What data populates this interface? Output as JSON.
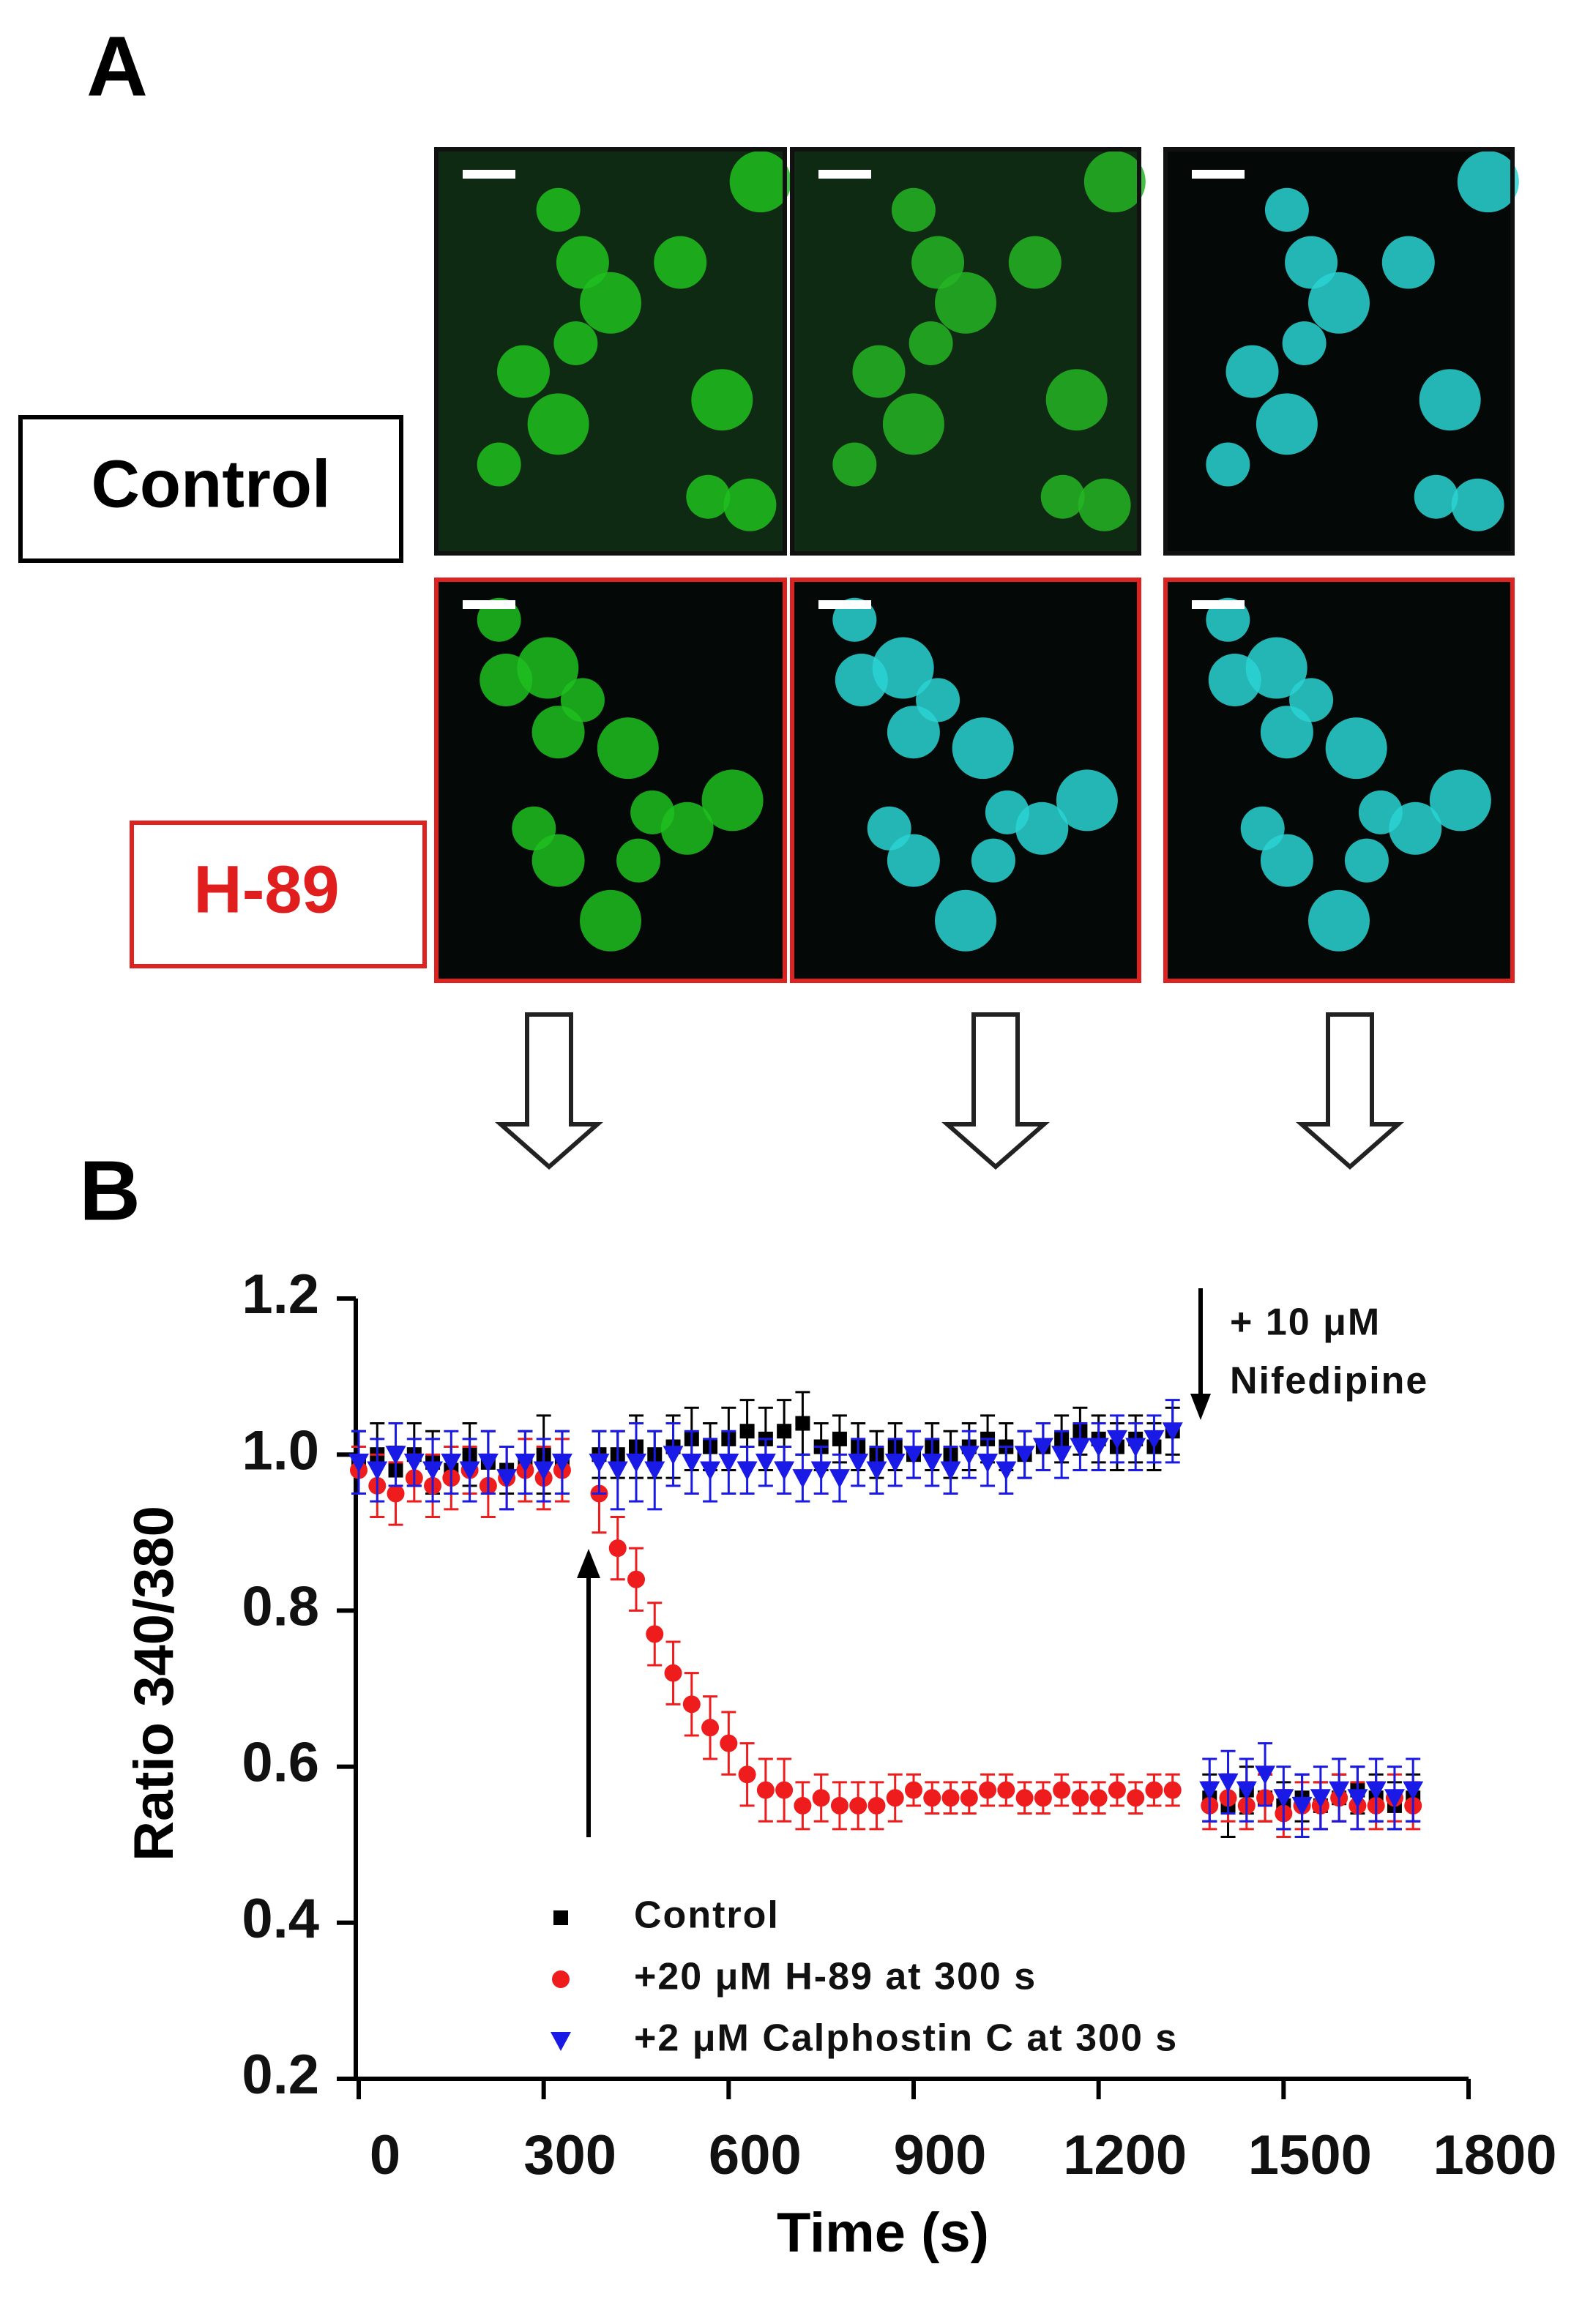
{
  "panel_labels": [
    "A",
    "B"
  ],
  "row_labels": [
    "Control",
    "H-89"
  ],
  "chart_data": {
    "type": "scatter",
    "xlabel": "Time (s)",
    "ylabel": "Ratio 340/380",
    "annotations": [
      "+ 10 μM",
      "Nifedipine"
    ],
    "xlim": [
      0,
      1800
    ],
    "xticks": [
      0,
      300,
      600,
      900,
      1200,
      1500,
      1800
    ],
    "ylim": [
      0.2,
      1.2
    ],
    "yticks": [
      0.2,
      0.4,
      0.6,
      0.8,
      {
        "value": 1,
        "label": "1.0"
      },
      1.2
    ],
    "x": [
      0,
      30,
      60,
      90,
      120,
      150,
      180,
      210,
      240,
      270,
      300,
      330,
      390,
      420,
      450,
      480,
      510,
      540,
      570,
      600,
      630,
      660,
      690,
      720,
      750,
      780,
      810,
      840,
      870,
      900,
      930,
      960,
      990,
      1020,
      1050,
      1080,
      1110,
      1140,
      1170,
      1200,
      1230,
      1260,
      1290,
      1320,
      1380,
      1410,
      1440,
      1470,
      1500,
      1530,
      1560,
      1590,
      1620,
      1650,
      1680,
      1710
    ],
    "series": [
      {
        "name": "Control",
        "color": "#000000",
        "marker": "square",
        "values": [
          0.99,
          1.0,
          0.98,
          1.0,
          0.99,
          0.98,
          1.0,
          0.99,
          0.98,
          0.99,
          1.0,
          0.99,
          1.0,
          1.0,
          1.01,
          1.0,
          1.01,
          1.02,
          1.01,
          1.02,
          1.03,
          1.02,
          1.03,
          1.04,
          1.01,
          1.02,
          1.01,
          1.0,
          1.01,
          1.0,
          1.01,
          1.0,
          1.01,
          1.02,
          1.01,
          1.0,
          1.01,
          1.02,
          1.03,
          1.02,
          1.01,
          1.02,
          1.01,
          1.03,
          0.56,
          0.55,
          0.57,
          0.56,
          0.55,
          0.56,
          0.55,
          0.56,
          0.57,
          0.56,
          0.55,
          0.56
        ],
        "errors": [
          0.04,
          0.04,
          0.03,
          0.04,
          0.04,
          0.03,
          0.04,
          0.04,
          0.03,
          0.04,
          0.05,
          0.04,
          0.03,
          0.03,
          0.04,
          0.03,
          0.04,
          0.04,
          0.03,
          0.04,
          0.04,
          0.04,
          0.04,
          0.04,
          0.03,
          0.03,
          0.03,
          0.03,
          0.03,
          0.03,
          0.03,
          0.03,
          0.03,
          0.03,
          0.03,
          0.03,
          0.03,
          0.03,
          0.03,
          0.03,
          0.03,
          0.03,
          0.03,
          0.03,
          0.03,
          0.04,
          0.03,
          0.03,
          0.03,
          0.03,
          0.03,
          0.03,
          0.03,
          0.03,
          0.03,
          0.03
        ]
      },
      {
        "name": "+20 μM H-89 at 300 s",
        "color": "#ee1c1c",
        "marker": "circle",
        "values": [
          0.98,
          0.96,
          0.95,
          0.97,
          0.96,
          0.97,
          0.98,
          0.96,
          0.97,
          0.98,
          0.97,
          0.98,
          0.95,
          0.88,
          0.84,
          0.77,
          0.72,
          0.68,
          0.65,
          0.63,
          0.59,
          0.57,
          0.57,
          0.55,
          0.56,
          0.55,
          0.55,
          0.55,
          0.56,
          0.57,
          0.56,
          0.56,
          0.56,
          0.57,
          0.57,
          0.56,
          0.56,
          0.57,
          0.56,
          0.56,
          0.57,
          0.56,
          0.57,
          0.57,
          0.55,
          0.56,
          0.55,
          0.56,
          0.54,
          0.55,
          0.55,
          0.56,
          0.55,
          0.55,
          0.56,
          0.55
        ],
        "errors": [
          0.03,
          0.04,
          0.04,
          0.03,
          0.04,
          0.04,
          0.03,
          0.04,
          0.04,
          0.04,
          0.04,
          0.04,
          0.05,
          0.04,
          0.04,
          0.04,
          0.04,
          0.04,
          0.04,
          0.04,
          0.04,
          0.04,
          0.04,
          0.03,
          0.03,
          0.03,
          0.03,
          0.03,
          0.03,
          0.02,
          0.02,
          0.02,
          0.02,
          0.02,
          0.02,
          0.02,
          0.02,
          0.02,
          0.02,
          0.02,
          0.02,
          0.02,
          0.02,
          0.02,
          0.03,
          0.03,
          0.03,
          0.03,
          0.03,
          0.03,
          0.03,
          0.03,
          0.03,
          0.03,
          0.03,
          0.03
        ]
      },
      {
        "name": "+2 μM Calphostin C at 300 s",
        "color": "#1a1ae6",
        "marker": "triangle-down",
        "values": [
          0.99,
          0.98,
          1.0,
          0.99,
          0.98,
          0.99,
          0.98,
          0.99,
          0.97,
          0.99,
          0.98,
          0.99,
          0.99,
          0.98,
          0.99,
          0.98,
          1.0,
          0.99,
          0.98,
          0.99,
          0.98,
          0.99,
          0.98,
          0.97,
          0.98,
          0.97,
          0.99,
          0.98,
          0.99,
          1.0,
          0.99,
          0.98,
          1.0,
          0.99,
          0.98,
          1.0,
          1.01,
          1.0,
          1.01,
          1.01,
          1.02,
          1.01,
          1.02,
          1.03,
          0.57,
          0.58,
          0.57,
          0.59,
          0.56,
          0.55,
          0.56,
          0.57,
          0.56,
          0.57,
          0.56,
          0.57
        ],
        "errors": [
          0.04,
          0.04,
          0.04,
          0.03,
          0.04,
          0.04,
          0.04,
          0.04,
          0.04,
          0.04,
          0.04,
          0.04,
          0.04,
          0.05,
          0.05,
          0.05,
          0.04,
          0.04,
          0.04,
          0.04,
          0.03,
          0.03,
          0.03,
          0.03,
          0.03,
          0.03,
          0.03,
          0.03,
          0.03,
          0.03,
          0.03,
          0.03,
          0.03,
          0.03,
          0.03,
          0.03,
          0.03,
          0.03,
          0.03,
          0.03,
          0.03,
          0.03,
          0.03,
          0.04,
          0.04,
          0.04,
          0.04,
          0.04,
          0.04,
          0.04,
          0.04,
          0.04,
          0.04,
          0.04,
          0.04,
          0.04
        ]
      }
    ]
  }
}
